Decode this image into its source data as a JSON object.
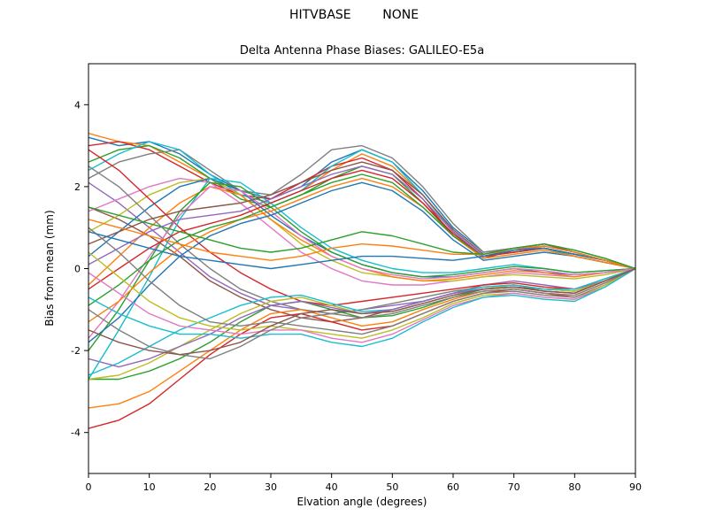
{
  "title": "HITVBASE        NONE",
  "chart_data": {
    "type": "line",
    "title": "Delta Antenna Phase Biases: GALILEO-E5a",
    "xlabel": "Elvation angle (degrees)",
    "ylabel": "Bias from mean (mm)",
    "xlim": [
      0,
      90
    ],
    "ylim": [
      -5,
      5
    ],
    "xticks": [
      0,
      10,
      20,
      30,
      40,
      50,
      60,
      70,
      80,
      90
    ],
    "yticks": [
      -4,
      -2,
      0,
      2,
      4
    ],
    "grid": false,
    "legend": "none",
    "x": [
      0,
      5,
      10,
      15,
      20,
      25,
      30,
      35,
      40,
      45,
      50,
      55,
      60,
      65,
      70,
      75,
      80,
      85,
      90
    ],
    "series": [
      {
        "color": "#1f77b4",
        "values": [
          3.2,
          3.0,
          3.1,
          2.8,
          2.3,
          1.9,
          1.7,
          2.0,
          2.6,
          2.9,
          2.6,
          1.9,
          1.0,
          0.4,
          0.5,
          0.6,
          0.4,
          0.2,
          0
        ]
      },
      {
        "color": "#ff7f0e",
        "values": [
          3.3,
          3.1,
          3.0,
          2.6,
          2.2,
          1.8,
          1.6,
          1.9,
          2.4,
          2.8,
          2.5,
          1.8,
          0.9,
          0.3,
          0.5,
          0.5,
          0.3,
          0.15,
          0
        ]
      },
      {
        "color": "#2ca02c",
        "values": [
          2.6,
          2.9,
          3.0,
          2.7,
          2.2,
          1.7,
          1.5,
          1.8,
          2.2,
          2.5,
          2.3,
          1.6,
          0.8,
          0.3,
          0.4,
          0.5,
          0.35,
          0.2,
          0
        ]
      },
      {
        "color": "#d62728",
        "values": [
          3.0,
          3.1,
          2.9,
          2.5,
          2.1,
          1.8,
          1.7,
          2.1,
          2.5,
          2.7,
          2.4,
          1.7,
          0.8,
          0.25,
          0.45,
          0.55,
          0.4,
          0.2,
          0
        ]
      },
      {
        "color": "#7f7f7f",
        "values": [
          2.2,
          2.6,
          2.8,
          2.9,
          2.4,
          1.9,
          1.8,
          2.3,
          2.9,
          3.0,
          2.7,
          2.0,
          1.1,
          0.4,
          0.5,
          0.6,
          0.45,
          0.25,
          0
        ]
      },
      {
        "color": "#17becf",
        "values": [
          2.4,
          2.8,
          3.1,
          2.9,
          2.3,
          1.8,
          1.6,
          1.9,
          2.5,
          2.9,
          2.6,
          1.8,
          0.9,
          0.3,
          0.4,
          0.5,
          0.3,
          0.15,
          0
        ]
      },
      {
        "color": "#9467bd",
        "values": [
          2.1,
          1.6,
          1.0,
          0.4,
          -0.2,
          -0.6,
          -0.9,
          -1.0,
          -1.1,
          -1.0,
          -0.9,
          -0.8,
          -0.6,
          -0.4,
          -0.3,
          -0.4,
          -0.5,
          -0.3,
          0
        ]
      },
      {
        "color": "#8c564b",
        "values": [
          1.5,
          1.2,
          0.8,
          0.3,
          -0.3,
          -0.7,
          -1.0,
          -1.2,
          -1.3,
          -1.2,
          -1.0,
          -0.8,
          -0.6,
          -0.5,
          -0.45,
          -0.5,
          -0.55,
          -0.3,
          0
        ]
      },
      {
        "color": "#e377c2",
        "values": [
          1.4,
          1.7,
          2.0,
          2.2,
          2.1,
          1.6,
          1.0,
          0.4,
          0.0,
          -0.3,
          -0.4,
          -0.4,
          -0.3,
          -0.2,
          -0.1,
          -0.15,
          -0.2,
          -0.1,
          0
        ]
      },
      {
        "color": "#bcbd22",
        "values": [
          0.9,
          1.3,
          1.8,
          2.1,
          2.2,
          1.8,
          1.2,
          0.6,
          0.2,
          -0.1,
          -0.2,
          -0.3,
          -0.3,
          -0.2,
          -0.15,
          -0.2,
          -0.25,
          -0.15,
          0
        ]
      },
      {
        "color": "#1f77b4",
        "values": [
          0.3,
          0.9,
          1.5,
          2.0,
          2.2,
          1.9,
          1.3,
          0.8,
          0.4,
          0.1,
          -0.1,
          -0.2,
          -0.2,
          -0.1,
          0.0,
          -0.1,
          -0.15,
          -0.1,
          0
        ]
      },
      {
        "color": "#ff7f0e",
        "values": [
          -0.4,
          0.3,
          1.0,
          1.6,
          2.0,
          1.8,
          1.2,
          0.7,
          0.3,
          0.0,
          -0.2,
          -0.3,
          -0.25,
          -0.15,
          -0.05,
          -0.1,
          -0.2,
          -0.1,
          0
        ]
      },
      {
        "color": "#d62728",
        "values": [
          2.9,
          2.4,
          1.7,
          1.0,
          0.4,
          -0.1,
          -0.5,
          -0.8,
          -0.9,
          -0.8,
          -0.7,
          -0.6,
          -0.5,
          -0.4,
          -0.35,
          -0.45,
          -0.5,
          -0.25,
          0
        ]
      },
      {
        "color": "#7f7f7f",
        "values": [
          2.5,
          2.0,
          1.3,
          0.6,
          0.0,
          -0.5,
          -0.8,
          -1.0,
          -1.1,
          -1.0,
          -0.85,
          -0.7,
          -0.55,
          -0.45,
          -0.4,
          -0.5,
          -0.55,
          -0.3,
          0
        ]
      },
      {
        "color": "#d62728",
        "values": [
          -3.9,
          -3.7,
          -3.3,
          -2.7,
          -2.1,
          -1.6,
          -1.2,
          -1.1,
          -1.3,
          -1.5,
          -1.4,
          -1.1,
          -0.8,
          -0.6,
          -0.5,
          -0.6,
          -0.7,
          -0.4,
          0
        ]
      },
      {
        "color": "#ff7f0e",
        "values": [
          -3.4,
          -3.3,
          -3.0,
          -2.5,
          -2.0,
          -1.5,
          -1.1,
          -1.0,
          -1.2,
          -1.4,
          -1.3,
          -1.0,
          -0.75,
          -0.55,
          -0.5,
          -0.6,
          -0.65,
          -0.35,
          0
        ]
      },
      {
        "color": "#2ca02c",
        "values": [
          -2.7,
          -2.7,
          -2.5,
          -2.2,
          -1.8,
          -1.3,
          -0.9,
          -0.8,
          -1.0,
          -1.2,
          -1.15,
          -0.95,
          -0.7,
          -0.5,
          -0.45,
          -0.55,
          -0.6,
          -0.3,
          0
        ]
      },
      {
        "color": "#bcbd22",
        "values": [
          -2.7,
          -2.6,
          -2.3,
          -1.9,
          -1.5,
          -1.1,
          -0.8,
          -0.7,
          -0.9,
          -1.1,
          -1.05,
          -0.85,
          -0.65,
          -0.5,
          -0.4,
          -0.5,
          -0.55,
          -0.3,
          0
        ]
      },
      {
        "color": "#17becf",
        "values": [
          -2.6,
          -2.3,
          -1.9,
          -1.5,
          -1.2,
          -0.9,
          -0.7,
          -0.65,
          -0.85,
          -1.05,
          -1.0,
          -0.8,
          -0.6,
          -0.45,
          -0.4,
          -0.5,
          -0.5,
          -0.25,
          0
        ]
      },
      {
        "color": "#9467bd",
        "values": [
          -2.2,
          -2.4,
          -2.2,
          -1.9,
          -1.6,
          -1.2,
          -0.9,
          -0.8,
          -0.95,
          -1.1,
          -1.0,
          -0.8,
          -0.6,
          -0.5,
          -0.45,
          -0.55,
          -0.6,
          -0.3,
          0
        ]
      },
      {
        "color": "#17becf",
        "values": [
          -2.7,
          -1.5,
          -0.2,
          1.2,
          2.2,
          2.1,
          1.6,
          1.0,
          0.5,
          0.2,
          0.0,
          -0.1,
          -0.1,
          0.0,
          0.1,
          0.0,
          -0.1,
          -0.05,
          0
        ]
      },
      {
        "color": "#2ca02c",
        "values": [
          -2.0,
          -1.0,
          0.2,
          1.4,
          2.1,
          2.0,
          1.5,
          0.9,
          0.4,
          0.1,
          -0.1,
          -0.2,
          -0.15,
          -0.05,
          0.05,
          0.0,
          -0.1,
          -0.05,
          0
        ]
      },
      {
        "color": "#e377c2",
        "values": [
          -1.7,
          -0.8,
          0.3,
          1.3,
          2.0,
          1.9,
          1.4,
          0.8,
          0.3,
          0.0,
          -0.15,
          -0.25,
          -0.2,
          -0.1,
          0.0,
          -0.05,
          -0.15,
          -0.1,
          0
        ]
      },
      {
        "color": "#1f77b4",
        "values": [
          -1.8,
          -1.2,
          -0.4,
          0.3,
          0.8,
          1.1,
          1.3,
          1.6,
          1.9,
          2.1,
          1.9,
          1.4,
          0.7,
          0.2,
          0.3,
          0.4,
          0.3,
          0.15,
          0
        ]
      },
      {
        "color": "#ff7f0e",
        "values": [
          -1.3,
          -0.8,
          -0.1,
          0.5,
          0.9,
          1.2,
          1.4,
          1.7,
          2.0,
          2.2,
          2.0,
          1.5,
          0.8,
          0.25,
          0.35,
          0.45,
          0.3,
          0.15,
          0
        ]
      },
      {
        "color": "#2ca02c",
        "values": [
          -0.9,
          -0.4,
          0.2,
          0.7,
          1.0,
          1.2,
          1.5,
          1.8,
          2.1,
          2.3,
          2.1,
          1.5,
          0.8,
          0.3,
          0.4,
          0.5,
          0.35,
          0.2,
          0
        ]
      },
      {
        "color": "#d62728",
        "values": [
          -0.5,
          0.0,
          0.5,
          0.9,
          1.1,
          1.3,
          1.6,
          1.9,
          2.2,
          2.4,
          2.2,
          1.6,
          0.85,
          0.3,
          0.4,
          0.5,
          0.35,
          0.2,
          0
        ]
      },
      {
        "color": "#9467bd",
        "values": [
          0.1,
          0.5,
          0.9,
          1.2,
          1.3,
          1.4,
          1.7,
          2.0,
          2.3,
          2.5,
          2.3,
          1.7,
          0.9,
          0.3,
          0.45,
          0.55,
          0.4,
          0.2,
          0
        ]
      },
      {
        "color": "#8c564b",
        "values": [
          0.6,
          0.9,
          1.2,
          1.4,
          1.5,
          1.6,
          1.8,
          2.1,
          2.4,
          2.6,
          2.4,
          1.8,
          0.95,
          0.35,
          0.5,
          0.6,
          0.4,
          0.2,
          0
        ]
      },
      {
        "color": "#7f7f7f",
        "values": [
          1.0,
          0.4,
          -0.3,
          -0.9,
          -1.3,
          -1.4,
          -1.3,
          -1.4,
          -1.5,
          -1.6,
          -1.4,
          -1.1,
          -0.8,
          -0.6,
          -0.55,
          -0.65,
          -0.7,
          -0.4,
          0
        ]
      },
      {
        "color": "#bcbd22",
        "values": [
          0.4,
          -0.2,
          -0.8,
          -1.2,
          -1.4,
          -1.5,
          -1.4,
          -1.5,
          -1.6,
          -1.7,
          -1.5,
          -1.2,
          -0.85,
          -0.65,
          -0.6,
          -0.7,
          -0.75,
          -0.4,
          0
        ]
      },
      {
        "color": "#e377c2",
        "values": [
          -0.1,
          -0.6,
          -1.1,
          -1.4,
          -1.5,
          -1.6,
          -1.5,
          -1.5,
          -1.7,
          -1.8,
          -1.6,
          -1.25,
          -0.9,
          -0.7,
          -0.6,
          -0.7,
          -0.75,
          -0.45,
          0
        ]
      },
      {
        "color": "#17becf",
        "values": [
          -0.7,
          -1.1,
          -1.4,
          -1.6,
          -1.6,
          -1.7,
          -1.6,
          -1.6,
          -1.8,
          -1.9,
          -1.7,
          -1.3,
          -0.95,
          -0.7,
          -0.65,
          -0.75,
          -0.8,
          -0.45,
          0
        ]
      },
      {
        "color": "#7f7f7f",
        "values": [
          -1.0,
          -1.5,
          -1.9,
          -2.1,
          -2.2,
          -1.9,
          -1.5,
          -1.2,
          -1.1,
          -1.2,
          -1.1,
          -0.9,
          -0.7,
          -0.55,
          -0.5,
          -0.6,
          -0.65,
          -0.35,
          0
        ]
      },
      {
        "color": "#8c564b",
        "values": [
          -1.5,
          -1.8,
          -2.0,
          -2.1,
          -2.0,
          -1.8,
          -1.4,
          -1.1,
          -1.0,
          -1.1,
          -1.05,
          -0.85,
          -0.65,
          -0.5,
          -0.45,
          -0.55,
          -0.6,
          -0.3,
          0
        ]
      },
      {
        "color": "#1f77b4",
        "values": [
          0.9,
          0.7,
          0.5,
          0.3,
          0.2,
          0.1,
          0.0,
          0.1,
          0.2,
          0.3,
          0.3,
          0.25,
          0.2,
          0.3,
          0.45,
          0.5,
          0.35,
          0.2,
          0
        ]
      },
      {
        "color": "#ff7f0e",
        "values": [
          1.2,
          1.0,
          0.8,
          0.6,
          0.4,
          0.3,
          0.2,
          0.3,
          0.5,
          0.6,
          0.55,
          0.45,
          0.35,
          0.35,
          0.5,
          0.55,
          0.4,
          0.2,
          0
        ]
      },
      {
        "color": "#2ca02c",
        "values": [
          1.5,
          1.3,
          1.1,
          0.9,
          0.7,
          0.5,
          0.4,
          0.5,
          0.7,
          0.9,
          0.8,
          0.6,
          0.4,
          0.35,
          0.5,
          0.6,
          0.45,
          0.25,
          0
        ]
      }
    ]
  }
}
